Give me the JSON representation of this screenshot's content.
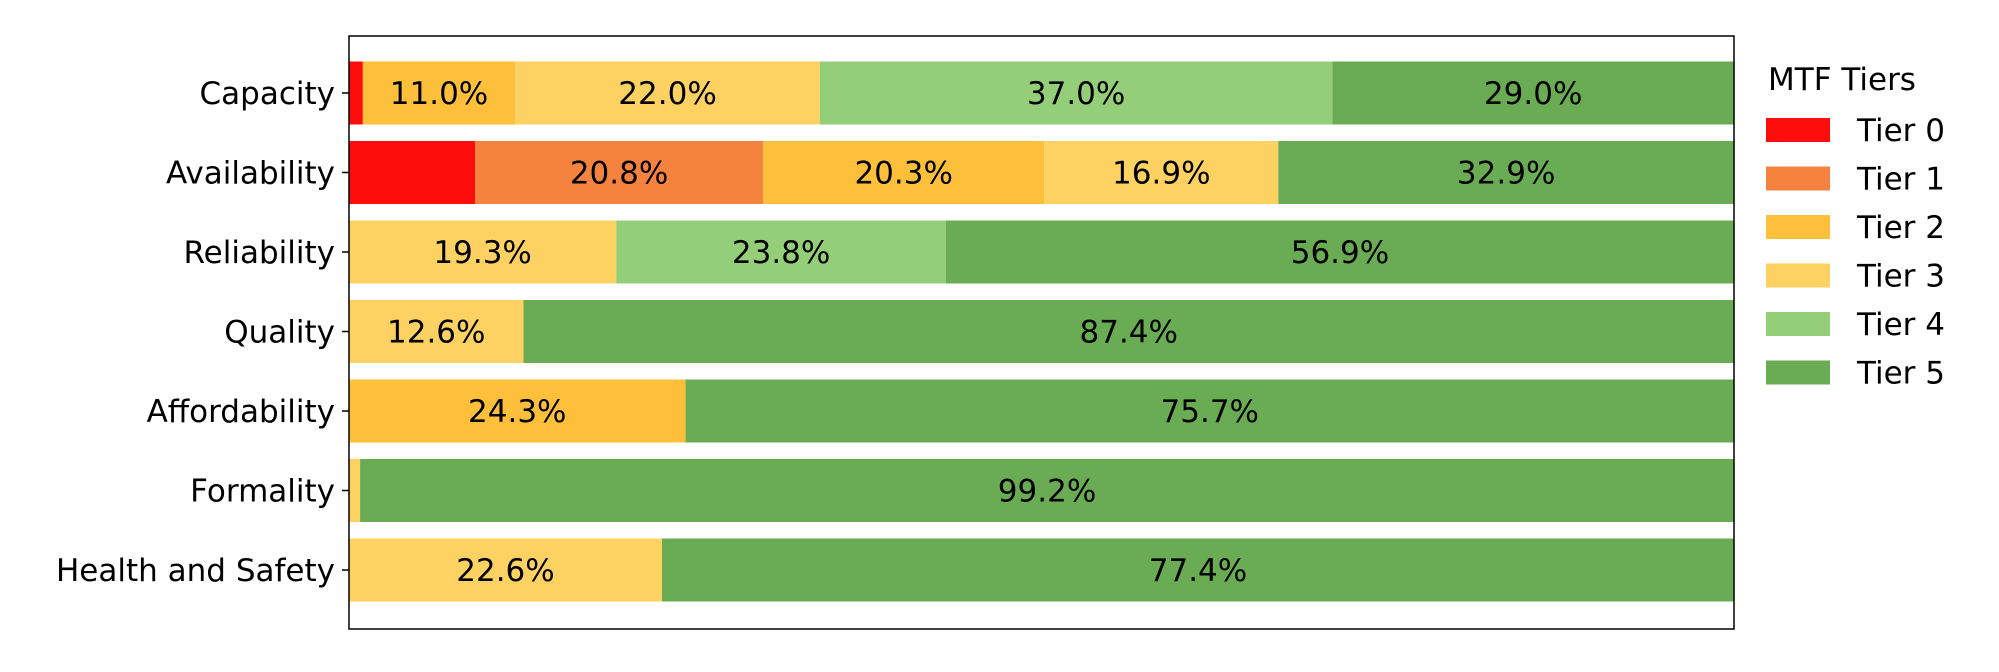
{
  "chart_data": {
    "type": "bar",
    "orientation": "horizontal",
    "stacked": true,
    "percent": true,
    "title": "",
    "xlabel": "",
    "ylabel": "",
    "xlim": [
      0,
      100
    ],
    "grid": false,
    "categories": [
      "Capacity",
      "Availability",
      "Reliability",
      "Quality",
      "Affordability",
      "Formality",
      "Health and Safety"
    ],
    "series": [
      {
        "name": "Tier 0",
        "color": "#ff0d0d",
        "values": [
          1.0,
          9.1,
          0,
          0,
          0,
          0,
          0
        ]
      },
      {
        "name": "Tier 1",
        "color": "#f5833f",
        "values": [
          0,
          20.8,
          0,
          0,
          0,
          0,
          0
        ]
      },
      {
        "name": "Tier 2",
        "color": "#fec03a",
        "values": [
          11.0,
          20.3,
          0,
          0,
          24.3,
          0,
          0
        ]
      },
      {
        "name": "Tier 3",
        "color": "#fdd162",
        "values": [
          22.0,
          16.9,
          19.3,
          12.6,
          0,
          0.8,
          22.6
        ]
      },
      {
        "name": "Tier 4",
        "color": "#95ce79",
        "values": [
          37.0,
          0,
          23.8,
          0,
          0,
          0,
          0
        ]
      },
      {
        "name": "Tier 5",
        "color": "#69ac53",
        "values": [
          29.0,
          32.9,
          56.9,
          87.4,
          75.7,
          99.2,
          77.4
        ]
      }
    ],
    "data_labels": [
      [
        null,
        null,
        "11.0%",
        "22.0%",
        "37.0%",
        "29.0%"
      ],
      [
        null,
        "20.8%",
        "20.3%",
        "16.9%",
        null,
        "32.9%"
      ],
      [
        null,
        null,
        null,
        "19.3%",
        "23.8%",
        "56.9%"
      ],
      [
        null,
        null,
        null,
        "12.6%",
        null,
        "87.4%"
      ],
      [
        null,
        null,
        "24.3%",
        null,
        null,
        "75.7%"
      ],
      [
        null,
        null,
        null,
        null,
        null,
        "99.2%"
      ],
      [
        null,
        null,
        null,
        "22.6%",
        null,
        "77.4%"
      ]
    ],
    "legend": {
      "title": "MTF Tiers",
      "placement": "right",
      "entries": [
        "Tier 0",
        "Tier 1",
        "Tier 2",
        "Tier 3",
        "Tier 4",
        "Tier 5"
      ]
    }
  }
}
